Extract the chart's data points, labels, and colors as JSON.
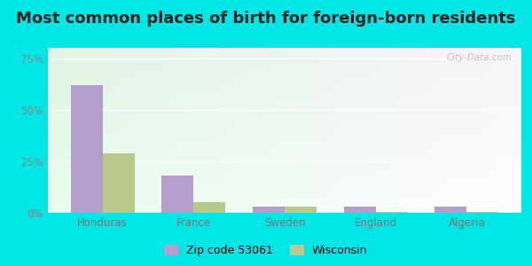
{
  "title": "Most common places of birth for foreign-born residents",
  "categories": [
    "Honduras",
    "France",
    "Sweden",
    "England",
    "Algeria"
  ],
  "zip_values": [
    62,
    18,
    3,
    3,
    3
  ],
  "wi_values": [
    29,
    5,
    3,
    0.5,
    0.5
  ],
  "zip_color": "#b59dcc",
  "wi_color": "#b8c98a",
  "yticks": [
    0,
    25,
    50,
    75
  ],
  "ytick_labels": [
    "0%",
    "25%",
    "50%",
    "75%"
  ],
  "ylim": [
    0,
    80
  ],
  "legend_zip": "Zip code 53061",
  "legend_wi": "Wisconsin",
  "outer_color": "#00e5e5",
  "bar_width": 0.35,
  "title_fontsize": 13,
  "axis_label_fontsize": 8.5,
  "legend_fontsize": 9,
  "watermark": "City-Data.com"
}
